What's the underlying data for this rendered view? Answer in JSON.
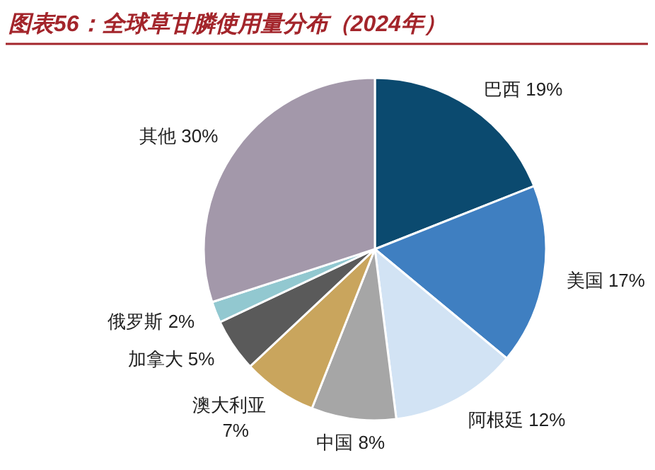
{
  "chart_data": {
    "type": "pie",
    "title": "图表56：全球草甘膦使用量分布（2024年）",
    "categories": [
      "巴西",
      "美国",
      "阿根廷",
      "中国",
      "澳大利亚",
      "加拿大",
      "俄罗斯",
      "其他"
    ],
    "values": [
      19,
      17,
      12,
      8,
      7,
      5,
      2,
      30
    ],
    "colors": [
      "#0b4a6f",
      "#3f7fc1",
      "#d2e3f4",
      "#a6a6a6",
      "#c9a55d",
      "#5a5a5a",
      "#92c8d0",
      "#a398aa"
    ],
    "value_labels": [
      "19%",
      "17%",
      "12%",
      "8%",
      "7%",
      "5%",
      "2%",
      "30%"
    ]
  }
}
